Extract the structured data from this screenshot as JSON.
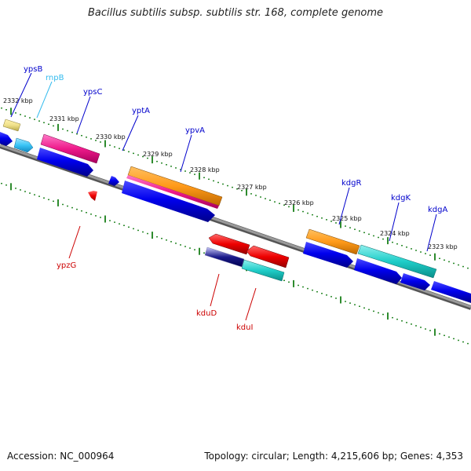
{
  "title": "Bacillus subtilis subsp. subtilis str. 168, complete genome",
  "footer": {
    "accession": "Accession: NC_000964",
    "topology": "Topology: circular; Length: 4,215,606 bp; Genes: 4,353"
  },
  "colors": {
    "backbone": "#8a8a8a",
    "tick": "#2e8b2e",
    "label_blue": "#0000cc",
    "label_red": "#cc0000",
    "label_cyan": "#33bbee"
  },
  "kbp_labels": [
    "2332 kbp",
    "2331 kbp",
    "2330 kbp",
    "2329 kbp",
    "2328 kbp",
    "2327 kbp",
    "2326 kbp",
    "2325 kbp",
    "2324 kbp",
    "2323 kbp"
  ],
  "genes": [
    {
      "name": "ypsB",
      "color": "#0000cc"
    },
    {
      "name": "rnpB",
      "color": "#33bbee"
    },
    {
      "name": "ypsC",
      "color": "#0000cc"
    },
    {
      "name": "yptA",
      "color": "#0000cc"
    },
    {
      "name": "ypvA",
      "color": "#0000cc"
    },
    {
      "name": "kdgR",
      "color": "#0000cc"
    },
    {
      "name": "kdgK",
      "color": "#0000cc"
    },
    {
      "name": "kdgA",
      "color": "#0000cc"
    },
    {
      "name": "ypzG",
      "color": "#cc0000"
    },
    {
      "name": "kduD",
      "color": "#cc0000"
    },
    {
      "name": "kduI",
      "color": "#cc0000"
    }
  ]
}
